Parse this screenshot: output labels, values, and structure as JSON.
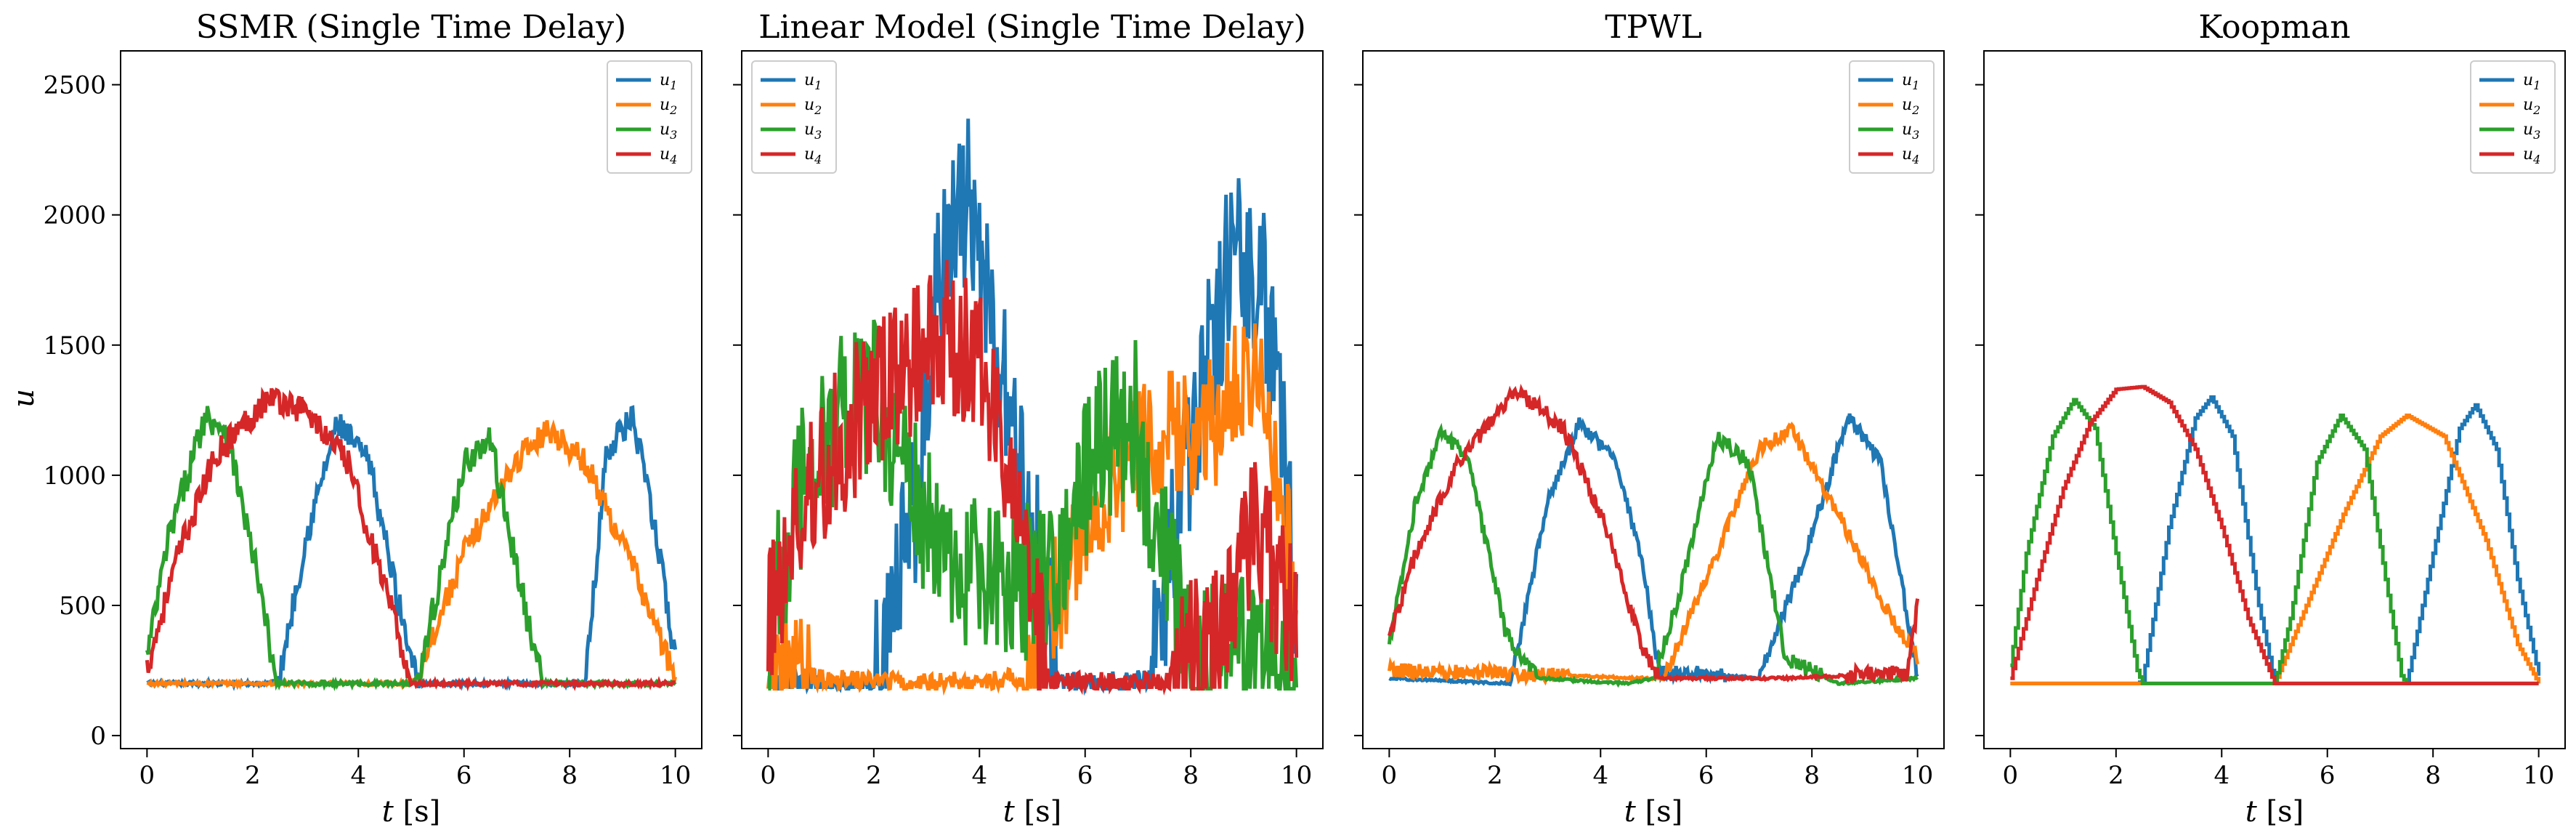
{
  "figure": {
    "ylabel": "u",
    "xlabel_var": "t",
    "xlabel_unit": "[s]"
  },
  "chart_data": [
    {
      "type": "line",
      "title": "SSMR (Single Time Delay)",
      "xlim": [
        -0.5,
        10.5
      ],
      "ylim": [
        -50,
        2630
      ],
      "xticks": [
        0,
        2,
        4,
        6,
        8,
        10
      ],
      "yticks": [
        0,
        500,
        1000,
        1500,
        2000,
        2500
      ],
      "legend_position": "top-right",
      "series": [
        {
          "name": "u1",
          "label_main": "u",
          "label_sub": "1",
          "color": "#1f77b4",
          "noise": 55,
          "x": [
            0,
            2.3,
            2.5,
            3.0,
            3.6,
            4.2,
            4.9,
            5.2,
            8.3,
            8.7,
            9.2,
            9.7,
            10.0
          ],
          "values": [
            200,
            200,
            220,
            750,
            1200,
            1050,
            380,
            200,
            200,
            1100,
            1220,
            700,
            280
          ]
        },
        {
          "name": "u2",
          "label_main": "u",
          "label_sub": "2",
          "color": "#ff7f0e",
          "noise": 50,
          "x": [
            0,
            4.9,
            5.1,
            6.0,
            7.0,
            7.6,
            8.3,
            9.2,
            10.0
          ],
          "values": [
            200,
            200,
            220,
            700,
            1060,
            1180,
            1050,
            650,
            220
          ]
        },
        {
          "name": "u3",
          "label_main": "u",
          "label_sub": "3",
          "color": "#2ca02c",
          "noise": 60,
          "x": [
            0,
            0.4,
            1.1,
            1.5,
            2.1,
            2.45,
            2.55,
            5.0,
            5.2,
            6.0,
            6.5,
            7.3,
            7.5,
            10.0
          ],
          "values": [
            300,
            750,
            1230,
            1180,
            600,
            200,
            200,
            200,
            270,
            1050,
            1130,
            350,
            200,
            200
          ]
        },
        {
          "name": "u4",
          "label_main": "u",
          "label_sub": "4",
          "color": "#d62728",
          "noise": 55,
          "x": [
            0,
            0.6,
            1.3,
            2.3,
            3.0,
            3.8,
            4.6,
            5.0,
            10.0
          ],
          "values": [
            260,
            700,
            1080,
            1300,
            1250,
            1050,
            500,
            200,
            200
          ]
        }
      ]
    },
    {
      "type": "line",
      "title": "Linear Model (Single Time Delay)",
      "xlim": [
        -0.5,
        10.5
      ],
      "ylim": [
        -50,
        2630
      ],
      "xticks": [
        0,
        2,
        4,
        6,
        8,
        10
      ],
      "yticks": [
        0,
        500,
        1000,
        1500,
        2000,
        2500
      ],
      "legend_position": "top-left",
      "series": [
        {
          "name": "u1",
          "label_main": "u",
          "label_sub": "1",
          "color": "#1f77b4",
          "noise": 330,
          "x": [
            0,
            2.0,
            2.8,
            3.2,
            3.8,
            4.3,
            5.0,
            5.5,
            7.2,
            8.0,
            8.8,
            9.4,
            10.0
          ],
          "values": [
            200,
            200,
            900,
            1800,
            2050,
            1500,
            800,
            200,
            200,
            1100,
            1900,
            1700,
            600
          ]
        },
        {
          "name": "u2",
          "label_main": "u",
          "label_sub": "2",
          "color": "#ff7f0e",
          "noise": 260,
          "x": [
            0,
            0.3,
            1.0,
            3.0,
            4.8,
            5.2,
            6.5,
            7.5,
            8.5,
            9.3,
            10.0
          ],
          "values": [
            350,
            250,
            220,
            200,
            220,
            400,
            1000,
            1150,
            1200,
            1500,
            500
          ]
        },
        {
          "name": "u3",
          "label_main": "u",
          "label_sub": "3",
          "color": "#2ca02c",
          "noise": 320,
          "x": [
            0,
            0.7,
            1.4,
            2.1,
            2.8,
            3.5,
            4.2,
            5.0,
            5.5,
            6.2,
            6.9,
            7.5,
            8.0,
            9.0,
            10.0
          ],
          "values": [
            400,
            1000,
            1250,
            1300,
            900,
            600,
            600,
            600,
            700,
            1100,
            1250,
            700,
            250,
            300,
            250
          ]
        },
        {
          "name": "u4",
          "label_main": "u",
          "label_sub": "4",
          "color": "#d62728",
          "noise": 300,
          "x": [
            0,
            0.8,
            1.6,
            2.5,
            3.3,
            4.1,
            4.9,
            5.3,
            7.5,
            8.5,
            9.2,
            10.0
          ],
          "values": [
            450,
            950,
            1200,
            1380,
            1550,
            1400,
            650,
            200,
            200,
            400,
            800,
            400
          ]
        }
      ]
    },
    {
      "type": "line",
      "title": "TPWL",
      "xlim": [
        -0.5,
        10.5
      ],
      "ylim": [
        -50,
        2630
      ],
      "xticks": [
        0,
        2,
        4,
        6,
        8,
        10
      ],
      "yticks": [
        0,
        500,
        1000,
        1500,
        2000,
        2500
      ],
      "legend_position": "top-right",
      "series": [
        {
          "name": "u1",
          "label_main": "u",
          "label_sub": "1",
          "color": "#1f77b4",
          "noise": 28,
          "x": [
            0,
            2.3,
            3.0,
            3.6,
            4.3,
            4.8,
            5.1,
            7.0,
            7.8,
            8.7,
            9.3,
            10.0
          ],
          "values": [
            220,
            200,
            900,
            1200,
            1050,
            650,
            250,
            220,
            650,
            1230,
            1050,
            230
          ]
        },
        {
          "name": "u2",
          "label_main": "u",
          "label_sub": "2",
          "color": "#ff7f0e",
          "noise": 28,
          "x": [
            0,
            2.0,
            4.8,
            5.2,
            6.2,
            7.0,
            7.6,
            8.5,
            9.5,
            10.0
          ],
          "values": [
            250,
            240,
            220,
            220,
            700,
            1100,
            1180,
            850,
            450,
            300
          ]
        },
        {
          "name": "u3",
          "label_main": "u",
          "label_sub": "3",
          "color": "#2ca02c",
          "noise": 30,
          "x": [
            0,
            0.5,
            1.0,
            1.5,
            2.2,
            2.8,
            4.5,
            5.0,
            5.5,
            6.2,
            6.8,
            7.5,
            8.5,
            10.0
          ],
          "values": [
            350,
            900,
            1170,
            1050,
            400,
            220,
            200,
            220,
            550,
            1150,
            1050,
            300,
            200,
            220
          ]
        },
        {
          "name": "u4",
          "label_main": "u",
          "label_sub": "4",
          "color": "#d62728",
          "noise": 32,
          "x": [
            0,
            0.5,
            1.3,
            2.4,
            3.3,
            4.1,
            4.8,
            5.1,
            7.5,
            9.8,
            10.0
          ],
          "values": [
            380,
            700,
            1050,
            1330,
            1180,
            800,
            330,
            220,
            220,
            240,
            500
          ]
        }
      ]
    },
    {
      "type": "line",
      "title": "Koopman",
      "xlim": [
        -0.5,
        10.5
      ],
      "ylim": [
        -50,
        2630
      ],
      "xticks": [
        0,
        2,
        4,
        6,
        8,
        10
      ],
      "yticks": [
        0,
        500,
        1000,
        1500,
        2000,
        2500
      ],
      "legend_position": "top-right",
      "series": [
        {
          "name": "u1",
          "label_main": "u",
          "label_sub": "1",
          "color": "#1f77b4",
          "noise": 0,
          "x": [
            0,
            2.4,
            2.5,
            3.0,
            3.5,
            3.8,
            4.2,
            4.7,
            5.0,
            7.5,
            8.0,
            8.5,
            8.8,
            9.2,
            9.6,
            10.0
          ],
          "values": [
            200,
            200,
            210,
            800,
            1220,
            1300,
            1150,
            500,
            200,
            200,
            700,
            1180,
            1270,
            1100,
            600,
            230
          ]
        },
        {
          "name": "u2",
          "label_main": "u",
          "label_sub": "2",
          "color": "#ff7f0e",
          "noise": 0,
          "x": [
            0,
            5.0,
            5.5,
            6.3,
            7.0,
            7.5,
            8.2,
            9.0,
            9.6,
            10.0
          ],
          "values": [
            200,
            200,
            450,
            850,
            1150,
            1230,
            1150,
            750,
            350,
            200
          ]
        },
        {
          "name": "u3",
          "label_main": "u",
          "label_sub": "3",
          "color": "#2ca02c",
          "noise": 0,
          "x": [
            0,
            0.3,
            0.8,
            1.2,
            1.6,
            2.0,
            2.4,
            2.5,
            5.0,
            5.3,
            5.8,
            6.25,
            6.7,
            7.1,
            7.4,
            7.5,
            10.0
          ],
          "values": [
            270,
            700,
            1150,
            1290,
            1180,
            700,
            250,
            200,
            200,
            450,
            1050,
            1230,
            1100,
            600,
            230,
            200,
            200
          ]
        },
        {
          "name": "u4",
          "label_main": "u",
          "label_sub": "4",
          "color": "#d62728",
          "noise": 0,
          "x": [
            0,
            0.5,
            1.0,
            1.5,
            2.0,
            2.5,
            3.0,
            3.5,
            4.0,
            4.5,
            5.0,
            10.0
          ],
          "values": [
            220,
            600,
            950,
            1200,
            1330,
            1340,
            1280,
            1100,
            800,
            450,
            200,
            200
          ]
        }
      ]
    }
  ]
}
